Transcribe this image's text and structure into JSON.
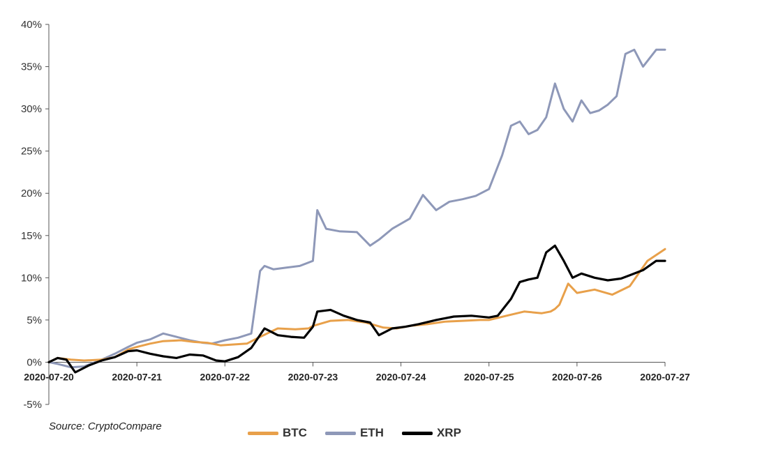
{
  "source": "Source: CryptoCompare",
  "colors": {
    "BTC": "#E8A04A",
    "ETH": "#8E98B8",
    "XRP": "#000000",
    "axis": "#555555"
  },
  "chart_data": {
    "type": "line",
    "title": "",
    "xlabel": "",
    "ylabel": "",
    "ylim": [
      -5,
      40
    ],
    "y_ticks": [
      "-5%",
      "0%",
      "5%",
      "10%",
      "15%",
      "20%",
      "25%",
      "30%",
      "35%",
      "40%"
    ],
    "x_ticks": [
      "2020-07-20",
      "2020-07-21",
      "2020-07-22",
      "2020-07-23",
      "2020-07-24",
      "2020-07-25",
      "2020-07-26",
      "2020-07-27"
    ],
    "x_unit": "days from 2020-07-20",
    "legend": [
      "BTC",
      "ETH",
      "XRP"
    ],
    "legend_position": "bottom",
    "grid": false,
    "series": [
      {
        "name": "BTC",
        "x": [
          0,
          0.1,
          0.25,
          0.4,
          0.6,
          0.75,
          0.9,
          1.0,
          1.15,
          1.3,
          1.5,
          1.65,
          1.8,
          1.95,
          2.1,
          2.25,
          2.4,
          2.6,
          2.8,
          2.95,
          3.0,
          3.2,
          3.4,
          3.6,
          3.8,
          3.95,
          4.1,
          4.3,
          4.5,
          4.7,
          4.9,
          5.0,
          5.2,
          5.4,
          5.6,
          5.7,
          5.75,
          5.8,
          5.9,
          6.0,
          6.2,
          6.4,
          6.6,
          6.8,
          7.0
        ],
        "y": [
          0,
          0.5,
          0.3,
          0.2,
          0.3,
          0.6,
          1.5,
          1.8,
          2.2,
          2.5,
          2.6,
          2.4,
          2.3,
          2.0,
          2.1,
          2.2,
          3.0,
          4.0,
          3.9,
          4.0,
          4.3,
          4.9,
          5.0,
          4.7,
          4.1,
          4.0,
          4.3,
          4.5,
          4.8,
          4.9,
          5.0,
          5.0,
          5.5,
          6.0,
          5.8,
          6.0,
          6.3,
          6.8,
          9.3,
          8.2,
          8.6,
          8.0,
          9.0,
          12.0,
          13.4
        ]
      },
      {
        "name": "ETH",
        "x": [
          0,
          0.1,
          0.25,
          0.4,
          0.6,
          0.75,
          0.9,
          1.0,
          1.15,
          1.3,
          1.45,
          1.6,
          1.75,
          1.85,
          2.0,
          2.15,
          2.3,
          2.4,
          2.45,
          2.55,
          2.7,
          2.85,
          3.0,
          3.05,
          3.15,
          3.3,
          3.5,
          3.65,
          3.75,
          3.9,
          4.1,
          4.25,
          4.4,
          4.55,
          4.7,
          4.85,
          5.0,
          5.15,
          5.25,
          5.35,
          5.45,
          5.55,
          5.65,
          5.75,
          5.85,
          5.95,
          6.05,
          6.15,
          6.25,
          6.35,
          6.45,
          6.55,
          6.65,
          6.75,
          6.9,
          7.0
        ],
        "y": [
          0,
          -0.2,
          -0.6,
          -0.5,
          0.3,
          1.0,
          1.8,
          2.3,
          2.7,
          3.4,
          3.0,
          2.6,
          2.3,
          2.2,
          2.6,
          2.9,
          3.4,
          10.8,
          11.4,
          11.0,
          11.2,
          11.4,
          12.0,
          18.0,
          15.8,
          15.5,
          15.4,
          13.8,
          14.5,
          15.8,
          17.0,
          19.8,
          18.0,
          19.0,
          19.3,
          19.7,
          20.5,
          24.5,
          28.0,
          28.5,
          27.0,
          27.5,
          29.0,
          33.0,
          30.0,
          28.5,
          31.0,
          29.5,
          29.8,
          30.5,
          31.5,
          36.5,
          37.0,
          35.0,
          37.0,
          37.0
        ]
      },
      {
        "name": "XRP",
        "x": [
          0,
          0.1,
          0.2,
          0.3,
          0.45,
          0.6,
          0.75,
          0.9,
          1.0,
          1.15,
          1.3,
          1.45,
          1.6,
          1.75,
          1.9,
          2.0,
          2.15,
          2.3,
          2.45,
          2.6,
          2.75,
          2.9,
          3.0,
          3.05,
          3.2,
          3.35,
          3.5,
          3.65,
          3.75,
          3.9,
          4.05,
          4.2,
          4.4,
          4.6,
          4.8,
          5.0,
          5.1,
          5.25,
          5.35,
          5.45,
          5.55,
          5.65,
          5.75,
          5.85,
          5.95,
          6.05,
          6.2,
          6.35,
          6.5,
          6.6,
          6.75,
          6.9,
          7.0
        ],
        "y": [
          0,
          0.5,
          0.3,
          -1.2,
          -0.4,
          0.2,
          0.6,
          1.3,
          1.4,
          1.0,
          0.7,
          0.5,
          0.9,
          0.8,
          0.2,
          0.1,
          0.6,
          1.7,
          4.0,
          3.2,
          3.0,
          2.9,
          4.2,
          6.0,
          6.2,
          5.5,
          5.0,
          4.7,
          3.2,
          4.0,
          4.2,
          4.5,
          5.0,
          5.4,
          5.5,
          5.3,
          5.5,
          7.5,
          9.5,
          9.8,
          10.0,
          13.0,
          13.8,
          12.0,
          10.0,
          10.5,
          10.0,
          9.7,
          9.9,
          10.3,
          10.9,
          12.0,
          12.0
        ]
      }
    ]
  }
}
